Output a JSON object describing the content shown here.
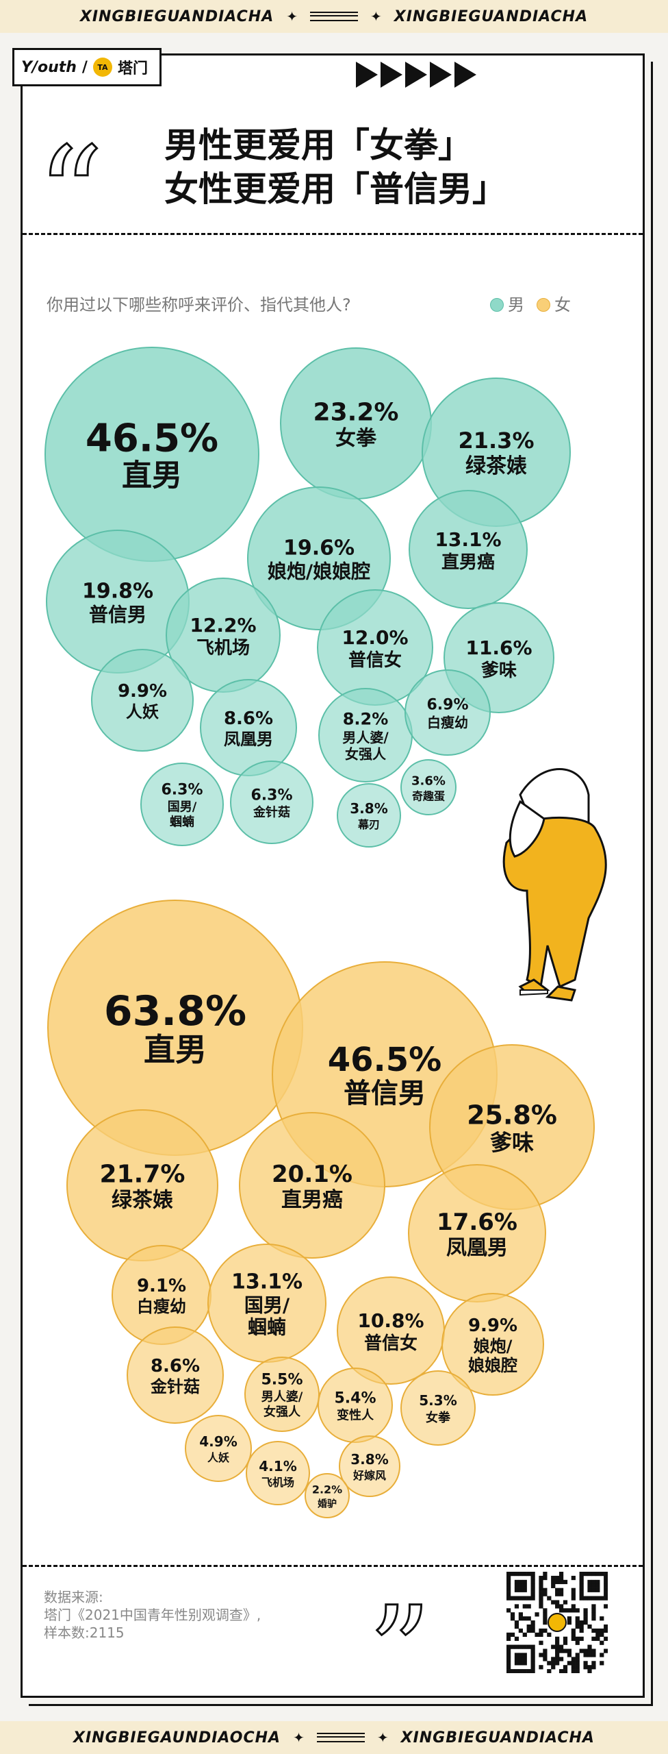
{
  "banner": {
    "text": "XINGBIEGUANDIACHA",
    "text_alt": "XINGBIEGAUNDIAOCHA"
  },
  "logo": {
    "youth": "Y/outh",
    "sep": "/",
    "mark": "TA",
    "name": "塔门"
  },
  "title": {
    "line1": "男性更爱用「女拳」",
    "line2": "女性更爱用「普信男」"
  },
  "question": "你用过以下哪些称呼来评价、指代其他人?",
  "legend": {
    "male": "男",
    "female": "女"
  },
  "colors": {
    "male": "#8fd9c8",
    "male_edge": "#5cbfa8",
    "female": "#f9cf77",
    "female_edge": "#e8ae3a",
    "figure": "#f2b31e"
  },
  "chart_data": [
    {
      "type": "bubble",
      "series": "男",
      "labels": [
        "直男",
        "女拳",
        "绿茶婊",
        "娘炮/娘娘腔",
        "直男癌",
        "普信男",
        "飞机场",
        "普信女",
        "爹味",
        "人妖",
        "凤凰男",
        "男人婆/女强人",
        "白瘦幼",
        "国男/蝈蝻",
        "金针菇",
        "幕刃",
        "奇趣蛋"
      ],
      "values": [
        "46.5%",
        "23.2%",
        "21.3%",
        "19.6%",
        "13.1%",
        "19.8%",
        "12.2%",
        "12.0%",
        "11.6%",
        "9.9%",
        "8.6%",
        "8.2%",
        "6.9%",
        "6.3%",
        "6.3%",
        "3.8%",
        "3.6%"
      ]
    },
    {
      "type": "bubble",
      "series": "女",
      "labels": [
        "直男",
        "普信男",
        "爹味",
        "绿茶婊",
        "直男癌",
        "凤凰男",
        "白瘦幼",
        "国男/蝈蝻",
        "普信女",
        "娘炮/娘娘腔",
        "金针菇",
        "男人婆/女强人",
        "变性人",
        "女拳",
        "人妖",
        "飞机场",
        "好嫁风",
        "婚驴"
      ],
      "values": [
        "63.8%",
        "46.5%",
        "25.8%",
        "21.7%",
        "20.1%",
        "17.6%",
        "9.1%",
        "13.1%",
        "10.8%",
        "9.9%",
        "8.6%",
        "5.5%",
        "5.4%",
        "5.3%",
        "4.9%",
        "4.1%",
        "3.8%",
        "2.2%"
      ]
    }
  ],
  "source": {
    "l1": "数据来源:",
    "l2": "塔门《2021中国青年性别观调查》,",
    "l3": "样本数:2115"
  }
}
